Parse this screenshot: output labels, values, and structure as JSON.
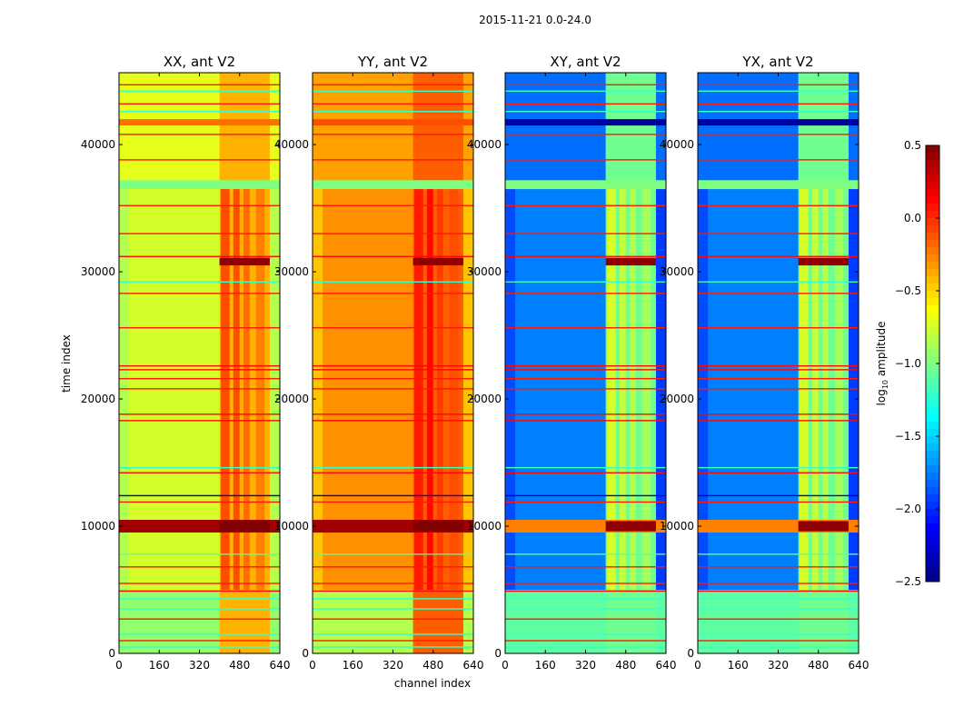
{
  "chart_data": {
    "type": "heatmap",
    "suptitle": "2015-11-21 0.0-24.0",
    "xlabel": "channel index",
    "ylabel": "time index",
    "xlim": [
      0,
      640
    ],
    "ylim": [
      0,
      45650
    ],
    "xticks": [
      "0",
      "160",
      "320",
      "480",
      "640"
    ],
    "xtick_values": [
      0,
      160,
      320,
      480,
      640
    ],
    "yticks": [
      "0",
      "10000",
      "20000",
      "30000",
      "40000"
    ],
    "ytick_values": [
      0,
      10000,
      20000,
      30000,
      40000
    ],
    "panels": [
      {
        "title": "XX, ant V2"
      },
      {
        "title": "YY, ant V2"
      },
      {
        "title": "XY, ant V2"
      },
      {
        "title": "YX, ant V2"
      }
    ],
    "colorbar": {
      "label_prefix": "log",
      "label_sub": "10",
      "label_suffix": " amplitude",
      "range": [
        -2.5,
        0.5
      ],
      "ticks": [
        "0.5",
        "0.0",
        "−0.5",
        "−1.0",
        "−1.5",
        "−2.0",
        "−2.5"
      ],
      "tick_values": [
        0.5,
        0.0,
        -0.5,
        -1.0,
        -1.5,
        -2.0,
        -2.5
      ],
      "colormap": "jet"
    },
    "regions_note_values_order": "XX,YY,XY,YX",
    "regions": [
      {
        "t": [
          0,
          45650
        ],
        "c": [
          0,
          640
        ],
        "v": [
          -0.75,
          -0.3,
          -1.75,
          -1.75
        ]
      },
      {
        "t": [
          0,
          5000
        ],
        "c": [
          0,
          640
        ],
        "v": [
          -0.95,
          -0.85,
          -1.1,
          -1.1
        ]
      },
      {
        "t": [
          37000,
          45650
        ],
        "c": [
          0,
          640
        ],
        "v": [
          -0.7,
          -0.35,
          -1.8,
          -1.8
        ]
      },
      {
        "t": [
          5000,
          37000
        ],
        "c": [
          0,
          40
        ],
        "v": [
          -0.85,
          -0.45,
          -1.9,
          -1.9
        ]
      },
      {
        "t": [
          5000,
          37000
        ],
        "c": [
          600,
          640
        ],
        "v": [
          -0.85,
          -0.45,
          -1.95,
          -1.95
        ]
      },
      {
        "t": [
          0,
          45650
        ],
        "c": [
          400,
          600
        ],
        "v": [
          -0.4,
          -0.15,
          -1.05,
          -1.05
        ]
      },
      {
        "t": [
          5000,
          37000
        ],
        "c": [
          405,
          440
        ],
        "v": [
          -0.1,
          0.05,
          -0.75,
          -0.75
        ]
      },
      {
        "t": [
          5000,
          37000
        ],
        "c": [
          455,
          480
        ],
        "v": [
          -0.1,
          0.1,
          -0.8,
          -0.8
        ]
      },
      {
        "t": [
          5000,
          37000
        ],
        "c": [
          495,
          520
        ],
        "v": [
          -0.2,
          -0.05,
          -0.85,
          -0.85
        ]
      },
      {
        "t": [
          5000,
          37000
        ],
        "c": [
          545,
          580
        ],
        "v": [
          -0.25,
          -0.1,
          -0.9,
          -0.9
        ]
      },
      {
        "t": [
          36500,
          37200
        ],
        "c": [
          0,
          640
        ],
        "v": [
          -1.0,
          -1.0,
          -1.0,
          -1.0
        ]
      },
      {
        "t": [
          9500,
          10500
        ],
        "c": [
          0,
          640
        ],
        "v": [
          0.4,
          0.4,
          -0.25,
          -0.25
        ]
      },
      {
        "t": [
          9600,
          10400
        ],
        "c": [
          400,
          600
        ],
        "v": [
          0.5,
          0.5,
          0.45,
          0.45
        ]
      },
      {
        "t": [
          30500,
          31100
        ],
        "c": [
          400,
          600
        ],
        "v": [
          0.45,
          0.45,
          0.45,
          0.45
        ]
      },
      {
        "t": [
          41500,
          42000
        ],
        "c": [
          0,
          640
        ],
        "v": [
          -0.2,
          -0.1,
          -2.4,
          -2.4
        ]
      }
    ],
    "lines_note": "thin horizontal RFI lines: time index and log10 amplitude",
    "lines": [
      {
        "t": 500,
        "v": -1.2
      },
      {
        "t": 1000,
        "v": 0.05
      },
      {
        "t": 1500,
        "v": -1.2
      },
      {
        "t": 2700,
        "v": 0.05
      },
      {
        "t": 3500,
        "v": -1.2
      },
      {
        "t": 4300,
        "v": -1.2
      },
      {
        "t": 4900,
        "v": 0.1
      },
      {
        "t": 5500,
        "v": 0.05
      },
      {
        "t": 6800,
        "v": 0.05
      },
      {
        "t": 7800,
        "v": -1.1
      },
      {
        "t": 11900,
        "v": 0.05
      },
      {
        "t": 12400,
        "v": -2.3
      },
      {
        "t": 14200,
        "v": 0.1
      },
      {
        "t": 14600,
        "v": -1.2
      },
      {
        "t": 18300,
        "v": 0.1
      },
      {
        "t": 18800,
        "v": 0.1
      },
      {
        "t": 20800,
        "v": 0.05
      },
      {
        "t": 21600,
        "v": 0.05
      },
      {
        "t": 22300,
        "v": 0.1
      },
      {
        "t": 22600,
        "v": 0.1
      },
      {
        "t": 25600,
        "v": 0.05
      },
      {
        "t": 28300,
        "v": 0.05
      },
      {
        "t": 29200,
        "v": -1.2
      },
      {
        "t": 31200,
        "v": 0.1
      },
      {
        "t": 33000,
        "v": 0.05
      },
      {
        "t": 35200,
        "v": 0.05
      },
      {
        "t": 38800,
        "v": 0.05
      },
      {
        "t": 40800,
        "v": 0.05
      },
      {
        "t": 42600,
        "v": -1.2
      },
      {
        "t": 43200,
        "v": 0.05
      },
      {
        "t": 44200,
        "v": -1.2
      },
      {
        "t": 44700,
        "v": 0.05
      }
    ]
  }
}
